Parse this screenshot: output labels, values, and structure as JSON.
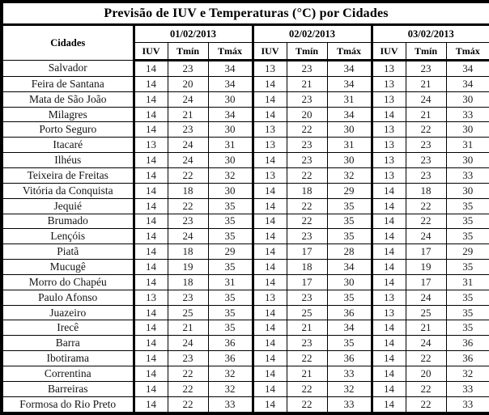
{
  "title": "Previsão de IUV e Temperaturas (°C) por Cidades",
  "table": {
    "cities_header": "Cidades",
    "dates": [
      "01/02/2013",
      "02/02/2013",
      "03/02/2013"
    ],
    "subheaders": [
      "IUV",
      "Tmín",
      "Tmáx"
    ],
    "rows": [
      {
        "city": "Salvador",
        "values": [
          [
            14,
            23,
            34
          ],
          [
            13,
            23,
            34
          ],
          [
            13,
            23,
            34
          ]
        ]
      },
      {
        "city": "Feira de Santana",
        "values": [
          [
            14,
            20,
            34
          ],
          [
            14,
            21,
            34
          ],
          [
            13,
            21,
            34
          ]
        ]
      },
      {
        "city": "Mata de São João",
        "values": [
          [
            14,
            24,
            30
          ],
          [
            14,
            23,
            31
          ],
          [
            13,
            24,
            30
          ]
        ]
      },
      {
        "city": "Milagres",
        "values": [
          [
            14,
            21,
            34
          ],
          [
            14,
            20,
            34
          ],
          [
            14,
            21,
            33
          ]
        ]
      },
      {
        "city": "Porto Seguro",
        "values": [
          [
            14,
            23,
            30
          ],
          [
            13,
            22,
            30
          ],
          [
            13,
            22,
            30
          ]
        ]
      },
      {
        "city": "Itacaré",
        "values": [
          [
            13,
            24,
            31
          ],
          [
            13,
            23,
            31
          ],
          [
            13,
            23,
            31
          ]
        ]
      },
      {
        "city": "Ilhéus",
        "values": [
          [
            14,
            24,
            30
          ],
          [
            14,
            23,
            30
          ],
          [
            13,
            23,
            30
          ]
        ]
      },
      {
        "city": "Teixeira de Freitas",
        "values": [
          [
            14,
            22,
            32
          ],
          [
            13,
            22,
            32
          ],
          [
            13,
            23,
            33
          ]
        ]
      },
      {
        "city": "Vitória da Conquista",
        "values": [
          [
            14,
            18,
            30
          ],
          [
            14,
            18,
            29
          ],
          [
            14,
            18,
            30
          ]
        ]
      },
      {
        "city": "Jequié",
        "values": [
          [
            14,
            22,
            35
          ],
          [
            14,
            22,
            35
          ],
          [
            14,
            22,
            35
          ]
        ]
      },
      {
        "city": "Brumado",
        "values": [
          [
            14,
            23,
            35
          ],
          [
            14,
            22,
            35
          ],
          [
            14,
            22,
            35
          ]
        ]
      },
      {
        "city": "Lençóis",
        "values": [
          [
            14,
            24,
            35
          ],
          [
            14,
            23,
            35
          ],
          [
            14,
            24,
            35
          ]
        ]
      },
      {
        "city": "Piatã",
        "values": [
          [
            14,
            18,
            29
          ],
          [
            14,
            17,
            28
          ],
          [
            14,
            17,
            29
          ]
        ]
      },
      {
        "city": "Mucugê",
        "values": [
          [
            14,
            19,
            35
          ],
          [
            14,
            18,
            34
          ],
          [
            14,
            19,
            35
          ]
        ]
      },
      {
        "city": "Morro do Chapéu",
        "values": [
          [
            14,
            18,
            31
          ],
          [
            14,
            17,
            30
          ],
          [
            14,
            17,
            31
          ]
        ]
      },
      {
        "city": "Paulo Afonso",
        "values": [
          [
            13,
            23,
            35
          ],
          [
            13,
            23,
            35
          ],
          [
            13,
            24,
            35
          ]
        ]
      },
      {
        "city": "Juazeiro",
        "values": [
          [
            14,
            25,
            35
          ],
          [
            14,
            25,
            36
          ],
          [
            13,
            25,
            35
          ]
        ]
      },
      {
        "city": "Irecê",
        "values": [
          [
            14,
            21,
            35
          ],
          [
            14,
            21,
            34
          ],
          [
            14,
            21,
            35
          ]
        ]
      },
      {
        "city": "Barra",
        "values": [
          [
            14,
            24,
            36
          ],
          [
            14,
            23,
            35
          ],
          [
            14,
            24,
            36
          ]
        ]
      },
      {
        "city": "Ibotirama",
        "values": [
          [
            14,
            23,
            36
          ],
          [
            14,
            22,
            36
          ],
          [
            14,
            22,
            36
          ]
        ]
      },
      {
        "city": "Correntina",
        "values": [
          [
            14,
            22,
            32
          ],
          [
            14,
            21,
            33
          ],
          [
            14,
            20,
            32
          ]
        ]
      },
      {
        "city": "Barreiras",
        "values": [
          [
            14,
            22,
            32
          ],
          [
            14,
            22,
            32
          ],
          [
            14,
            22,
            33
          ]
        ]
      },
      {
        "city": "Formosa do Rio Preto",
        "values": [
          [
            14,
            22,
            33
          ],
          [
            14,
            22,
            33
          ],
          [
            14,
            22,
            33
          ]
        ]
      }
    ]
  }
}
